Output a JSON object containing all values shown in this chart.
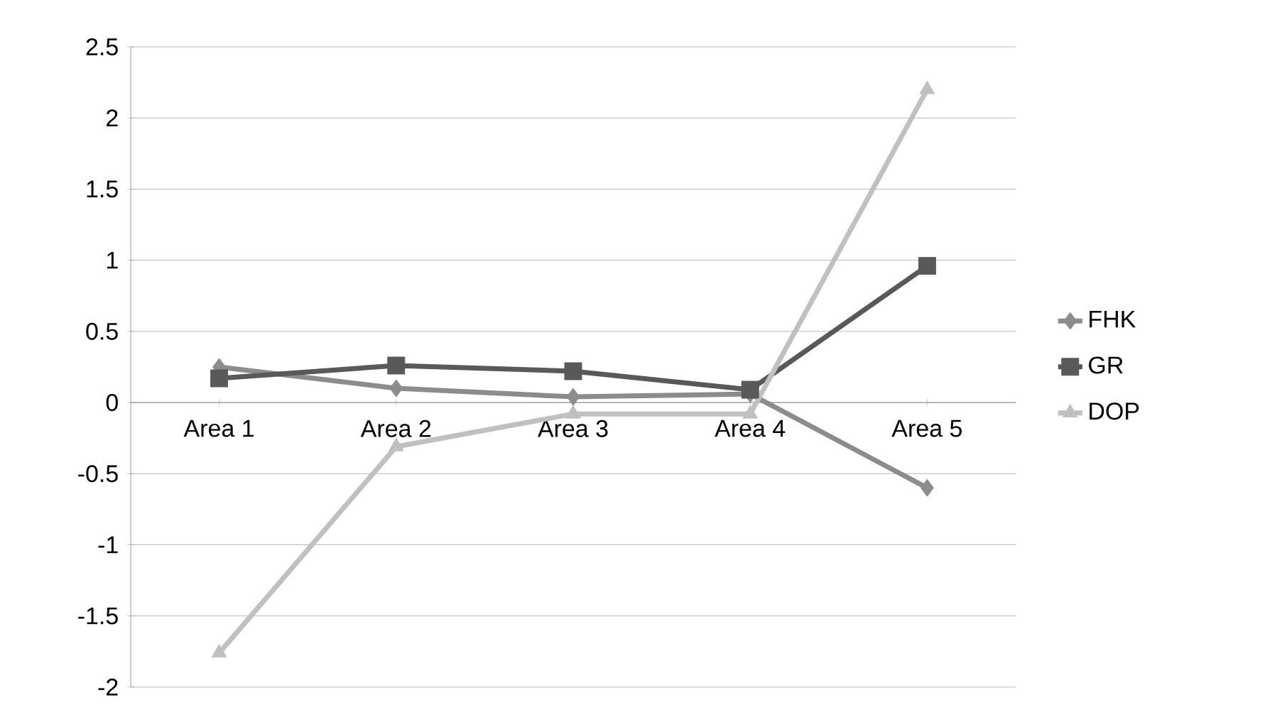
{
  "chart_data": {
    "type": "line",
    "categories": [
      "Area 1",
      "Area 2",
      "Area 3",
      "Area 4",
      "Area 5"
    ],
    "series": [
      {
        "name": "FHK",
        "color": "#8c8c8c",
        "marker": "diamond",
        "values": [
          0.25,
          0.1,
          0.04,
          0.06,
          -0.6
        ]
      },
      {
        "name": "GR",
        "color": "#595959",
        "marker": "square",
        "values": [
          0.17,
          0.26,
          0.22,
          0.09,
          0.96
        ]
      },
      {
        "name": "DOP",
        "color": "#c0c0c0",
        "marker": "triangle",
        "values": [
          -1.76,
          -0.31,
          -0.08,
          -0.08,
          2.2
        ]
      }
    ],
    "ylim": [
      -2,
      2.5
    ],
    "yticks": [
      -2,
      -1.5,
      -1,
      -0.5,
      0,
      0.5,
      1,
      1.5,
      2,
      2.5
    ],
    "grid": "y",
    "legend": "right",
    "line_style": "solid"
  }
}
